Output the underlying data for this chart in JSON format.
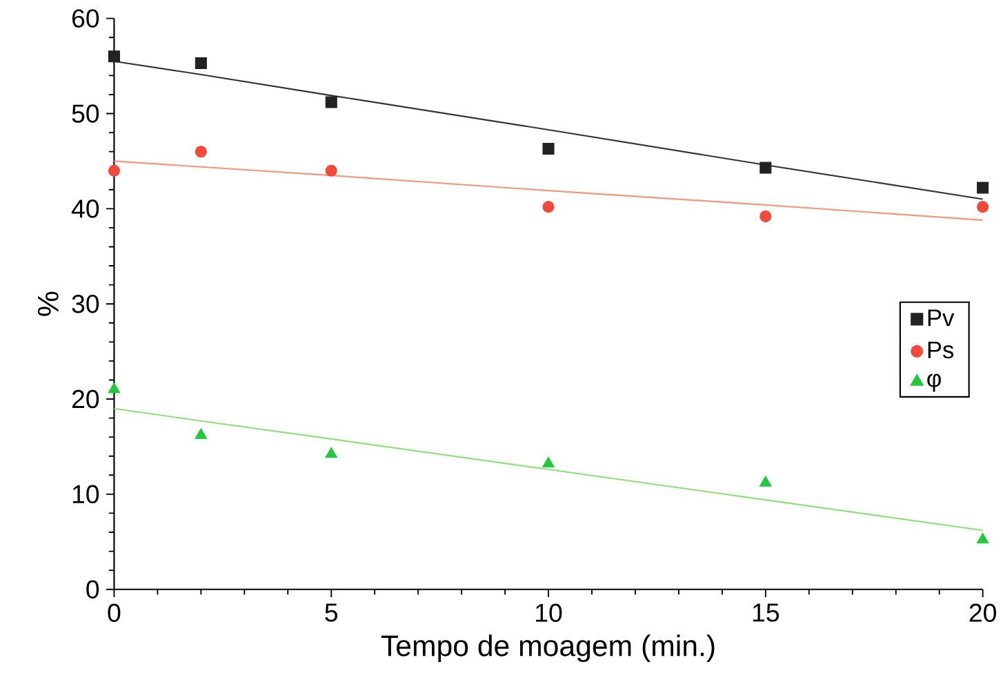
{
  "chart_data": {
    "type": "scatter",
    "xlabel": "Tempo de moagem (min.)",
    "ylabel": "%",
    "x": [
      0,
      2,
      5,
      10,
      15,
      20
    ],
    "series": [
      {
        "name": "Pv",
        "color": "#222222",
        "marker": "square",
        "values": [
          56,
          55.3,
          51.2,
          46.3,
          44.3,
          42.2
        ]
      },
      {
        "name": "Ps",
        "color": "#f04a3c",
        "marker": "circle",
        "values": [
          44,
          46,
          44,
          40.2,
          39.2,
          40.2
        ]
      },
      {
        "name": "φ",
        "color": "#22c83c",
        "marker": "triangle",
        "values": [
          21,
          16.2,
          14.2,
          13.2,
          11.2,
          5.2
        ]
      },
      {
        "type": "line",
        "color": "#333333",
        "values": [
          55.5,
          54.1,
          51.9,
          48.3,
          44.6,
          41
        ]
      },
      {
        "type": "line",
        "color": "#f5957a",
        "values": [
          45,
          44.4,
          43.5,
          41.9,
          40.4,
          38.8
        ]
      },
      {
        "type": "line",
        "color": "#8ee07a",
        "values": [
          19,
          17.7,
          15.8,
          12.6,
          9.4,
          6.2
        ]
      }
    ],
    "xlim": [
      0,
      20
    ],
    "ylim": [
      0,
      60
    ],
    "xticks": [
      0,
      5,
      10,
      15,
      20
    ],
    "yticks": [
      0,
      10,
      20,
      30,
      40,
      50,
      60
    ],
    "grid": false,
    "legend": "right"
  }
}
